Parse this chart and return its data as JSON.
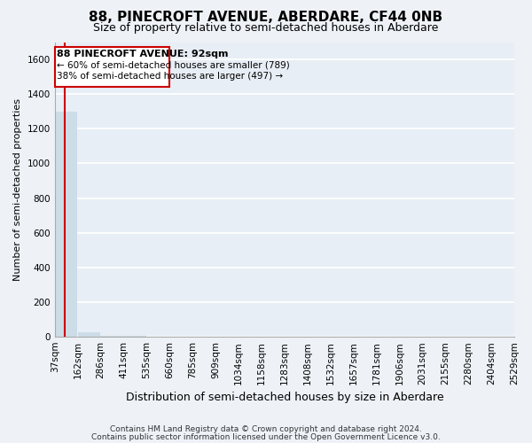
{
  "title": "88, PINECROFT AVENUE, ABERDARE, CF44 0NB",
  "subtitle": "Size of property relative to semi-detached houses in Aberdare",
  "xlabel": "Distribution of semi-detached houses by size in Aberdare",
  "ylabel": "Number of semi-detached properties",
  "footer_line1": "Contains HM Land Registry data © Crown copyright and database right 2024.",
  "footer_line2": "Contains public sector information licensed under the Open Government Licence v3.0.",
  "annotation_line1": "88 PINECROFT AVENUE: 92sqm",
  "annotation_line2": "← 60% of semi-detached houses are smaller (789)",
  "annotation_line3": "38% of semi-detached houses are larger (497) →",
  "property_size": 92,
  "bin_edges": [
    37,
    162,
    286,
    411,
    535,
    660,
    785,
    909,
    1034,
    1158,
    1283,
    1408,
    1532,
    1657,
    1781,
    1906,
    2031,
    2155,
    2280,
    2404,
    2529
  ],
  "bin_labels": [
    "37sqm",
    "162sqm",
    "286sqm",
    "411sqm",
    "535sqm",
    "660sqm",
    "785sqm",
    "909sqm",
    "1034sqm",
    "1158sqm",
    "1283sqm",
    "1408sqm",
    "1532sqm",
    "1657sqm",
    "1781sqm",
    "1906sqm",
    "2031sqm",
    "2155sqm",
    "2280sqm",
    "2404sqm",
    "2529sqm"
  ],
  "bar_heights": [
    1300,
    25,
    5,
    3,
    2,
    1,
    1,
    1,
    1,
    1,
    0,
    0,
    0,
    0,
    0,
    0,
    0,
    0,
    0,
    0
  ],
  "bar_color": "#ccdde8",
  "annotation_box_color": "#ffffff",
  "annotation_border_color": "#cc0000",
  "property_line_color": "#cc0000",
  "ylim": [
    0,
    1700
  ],
  "yticks": [
    0,
    200,
    400,
    600,
    800,
    1000,
    1200,
    1400,
    1600
  ],
  "background_color": "#eef2f7",
  "plot_background": "#e8eef5",
  "grid_color": "#ffffff",
  "figsize": [
    6.0,
    5.0
  ],
  "dpi": 100
}
